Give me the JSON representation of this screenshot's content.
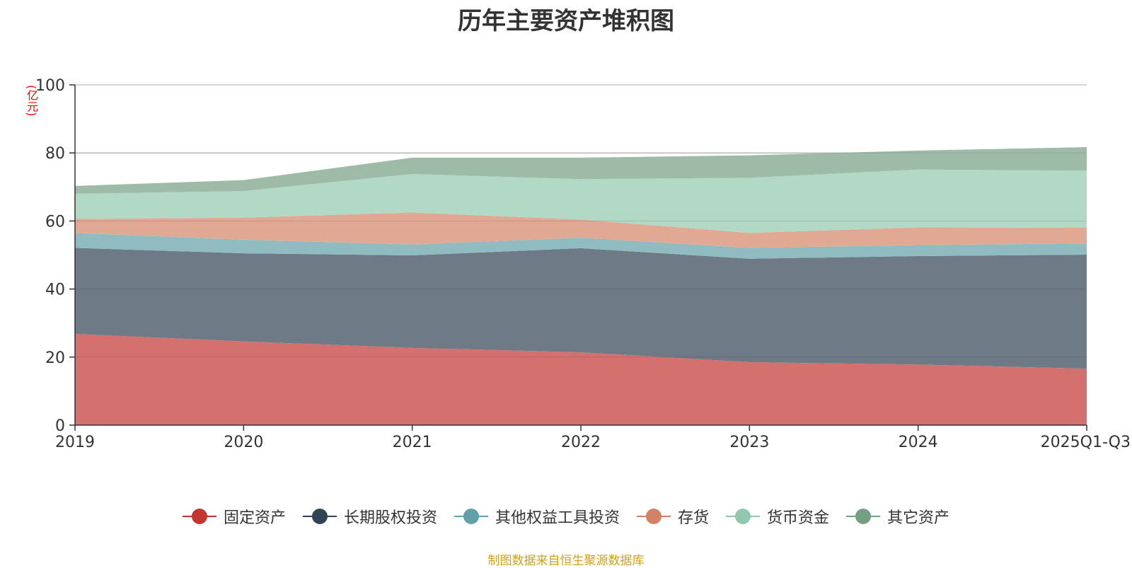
{
  "chart_data": {
    "type": "area",
    "stacked": true,
    "title": "历年主要资产堆积图",
    "ylabel": "(亿元)",
    "ylim": [
      0,
      100
    ],
    "yticks": [
      0,
      20,
      40,
      60,
      80,
      100
    ],
    "categories": [
      "2019",
      "2020",
      "2021",
      "2022",
      "2023",
      "2024",
      "2025Q1-Q3"
    ],
    "series": [
      {
        "name": "固定资产",
        "color": "#c23531",
        "fill": "#d4716f",
        "values": [
          26.8,
          24.6,
          22.7,
          21.4,
          18.5,
          17.8,
          16.6
        ]
      },
      {
        "name": "长期股权投资",
        "color": "#2f4554",
        "fill": "#6e7b86",
        "values": [
          25.3,
          25.9,
          27.2,
          30.6,
          30.4,
          31.9,
          33.5
        ]
      },
      {
        "name": "其他权益工具投资",
        "color": "#61a0a8",
        "fill": "#90bcc1",
        "values": [
          4.4,
          4.0,
          3.2,
          3.1,
          3.2,
          3.2,
          3.3
        ]
      },
      {
        "name": "存货",
        "color": "#d48265",
        "fill": "#e1a894",
        "values": [
          4.1,
          6.5,
          9.4,
          5.3,
          4.4,
          5.2,
          4.6
        ]
      },
      {
        "name": "货币资金",
        "color": "#91c7ae",
        "fill": "#b2d8c6",
        "values": [
          7.4,
          7.8,
          11.3,
          11.9,
          16.2,
          17.0,
          16.8
        ]
      },
      {
        "name": "其它资产",
        "color": "#749f83",
        "fill": "#9dbba7",
        "values": [
          2.3,
          3.2,
          4.8,
          6.3,
          6.6,
          5.6,
          6.9
        ]
      }
    ]
  },
  "source_text": "制图数据来自恒生聚源数据库"
}
